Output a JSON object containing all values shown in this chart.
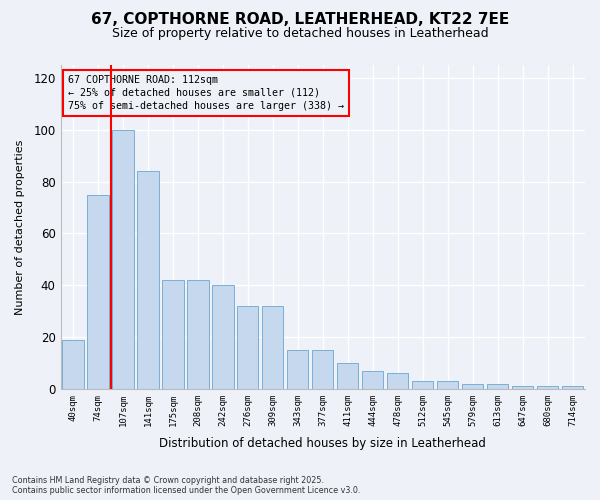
{
  "title1": "67, COPTHORNE ROAD, LEATHERHEAD, KT22 7EE",
  "title2": "Size of property relative to detached houses in Leatherhead",
  "xlabel": "Distribution of detached houses by size in Leatherhead",
  "ylabel": "Number of detached properties",
  "categories": [
    "40sqm",
    "74sqm",
    "107sqm",
    "141sqm",
    "175sqm",
    "208sqm",
    "242sqm",
    "276sqm",
    "309sqm",
    "343sqm",
    "377sqm",
    "411sqm",
    "444sqm",
    "478sqm",
    "512sqm",
    "545sqm",
    "579sqm",
    "613sqm",
    "647sqm",
    "680sqm",
    "714sqm"
  ],
  "values": [
    19,
    75,
    100,
    84,
    42,
    42,
    40,
    32,
    32,
    15,
    15,
    10,
    7,
    6,
    3,
    3,
    2,
    2,
    1,
    1,
    1
  ],
  "bar_color": "#c5d8ee",
  "bar_edge_color": "#7aafd4",
  "redline_index": 2,
  "annotation_title": "67 COPTHORNE ROAD: 112sqm",
  "annotation_line1": "← 25% of detached houses are smaller (112)",
  "annotation_line2": "75% of semi-detached houses are larger (338) →",
  "ylim": [
    0,
    125
  ],
  "yticks": [
    0,
    20,
    40,
    60,
    80,
    100,
    120
  ],
  "footnote1": "Contains HM Land Registry data © Crown copyright and database right 2025.",
  "footnote2": "Contains public sector information licensed under the Open Government Licence v3.0.",
  "bg_color": "#eef2f8",
  "plot_bg_color": "#eef2f8",
  "grid_color": "#ffffff",
  "title1_fontsize": 11,
  "title2_fontsize": 9
}
